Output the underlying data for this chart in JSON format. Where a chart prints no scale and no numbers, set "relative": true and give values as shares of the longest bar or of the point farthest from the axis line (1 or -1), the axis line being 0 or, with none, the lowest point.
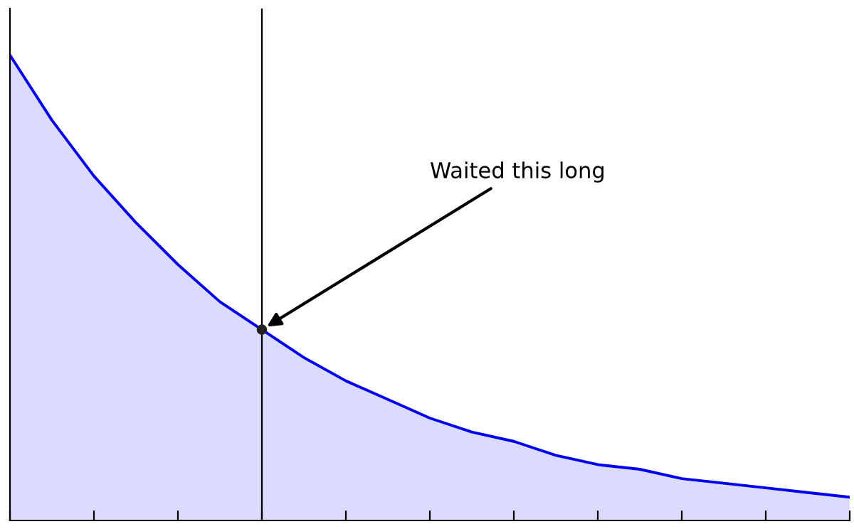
{
  "chart_data": {
    "type": "area",
    "relative": true,
    "categories": [
      null,
      null,
      null,
      null,
      null,
      null,
      null,
      null,
      null,
      null,
      null,
      null,
      null,
      null,
      null,
      null,
      null,
      null,
      null,
      null,
      null
    ],
    "series": [
      {
        "color": "#0000ee",
        "values": [
          1,
          0.86,
          0.74,
          0.64,
          0.55,
          0.47,
          0.41,
          0.35,
          0.3,
          0.26,
          0.22,
          0.19,
          0.17,
          0.14,
          0.12,
          0.11,
          0.09,
          0.08,
          0.07,
          0.06,
          0.05
        ]
      }
    ],
    "annotations": [
      "Waited this long"
    ],
    "grid": false,
    "legend": false
  }
}
